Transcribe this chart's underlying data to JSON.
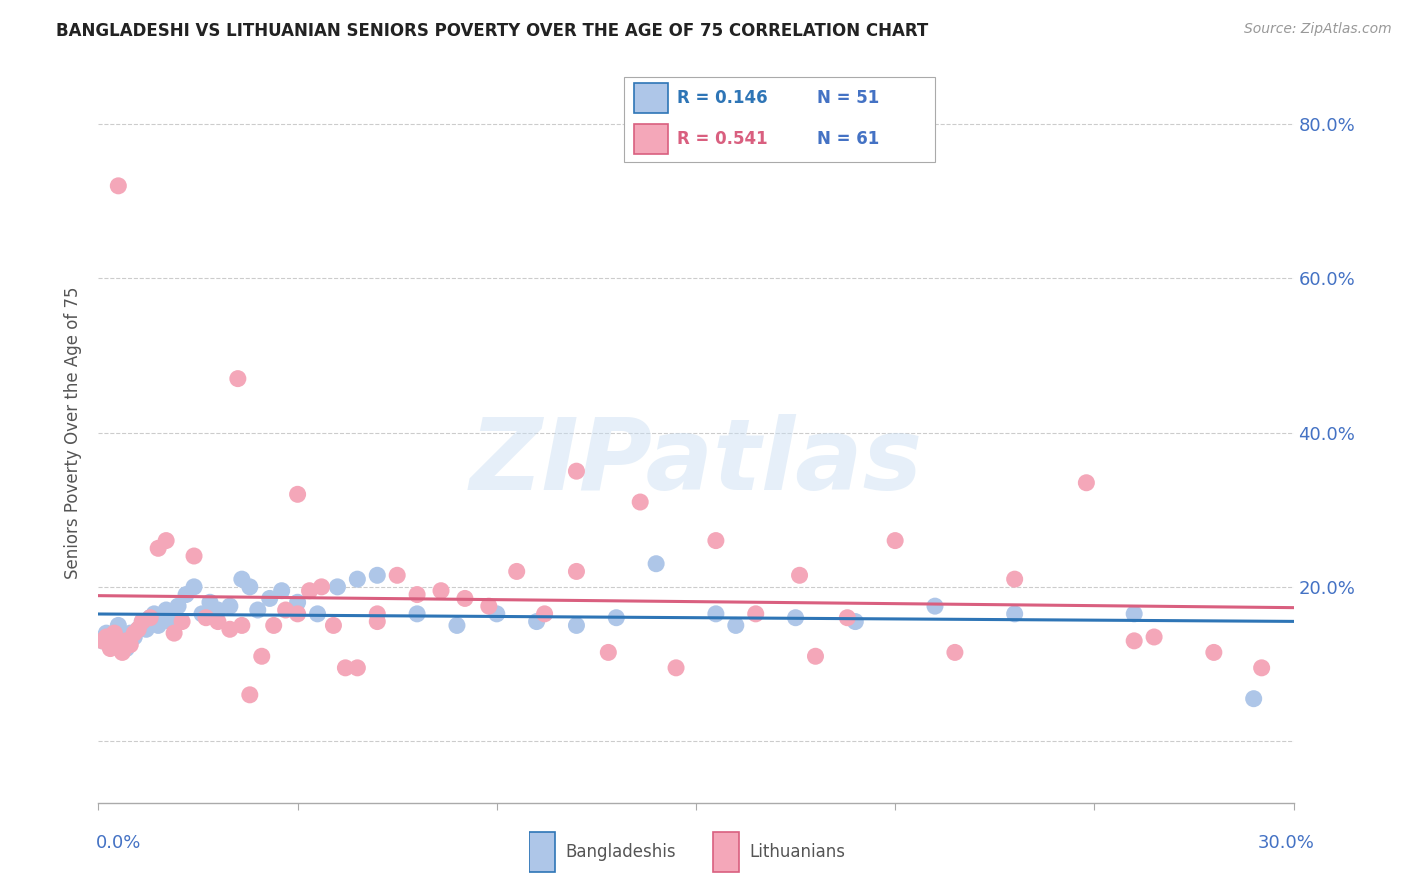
{
  "title": "BANGLADESHI VS LITHUANIAN SENIORS POVERTY OVER THE AGE OF 75 CORRELATION CHART",
  "source": "Source: ZipAtlas.com",
  "ylabel": "Seniors Poverty Over the Age of 75",
  "xtick_left": "0.0%",
  "xtick_right": "30.0%",
  "xlim": [
    0.0,
    0.3
  ],
  "ylim": [
    -0.08,
    0.88
  ],
  "yticks": [
    0.0,
    0.2,
    0.4,
    0.6,
    0.8
  ],
  "ytick_labels": [
    "",
    "20.0%",
    "40.0%",
    "60.0%",
    "80.0%"
  ],
  "title_color": "#222222",
  "source_color": "#999999",
  "axis_tick_color": "#4472c4",
  "grid_color": "#cccccc",
  "background_color": "#ffffff",
  "bangladeshi_color": "#aec6e8",
  "lithuanian_color": "#f4a7b9",
  "bangladeshi_line_color": "#2e75b6",
  "lithuanian_line_color": "#d95f7f",
  "legend_label_bangladeshi": "R = 0.146   N = 51",
  "legend_label_lithuanian": "R = 0.541   N = 61",
  "legend_R_bangladeshi": "R = 0.146",
  "legend_N_bangladeshi": "N = 51",
  "legend_R_lithuanian": "R = 0.541",
  "legend_N_lithuanian": "N = 61",
  "watermark": "ZIPatlas",
  "bangladeshi_x": [
    0.001,
    0.002,
    0.003,
    0.004,
    0.005,
    0.005,
    0.006,
    0.007,
    0.008,
    0.009,
    0.01,
    0.011,
    0.012,
    0.013,
    0.014,
    0.015,
    0.016,
    0.017,
    0.018,
    0.02,
    0.022,
    0.024,
    0.026,
    0.028,
    0.03,
    0.033,
    0.036,
    0.038,
    0.04,
    0.043,
    0.046,
    0.05,
    0.055,
    0.06,
    0.065,
    0.07,
    0.08,
    0.09,
    0.1,
    0.11,
    0.12,
    0.13,
    0.14,
    0.155,
    0.16,
    0.175,
    0.19,
    0.21,
    0.23,
    0.26,
    0.29
  ],
  "bangladeshi_y": [
    0.13,
    0.14,
    0.125,
    0.135,
    0.14,
    0.15,
    0.13,
    0.12,
    0.14,
    0.135,
    0.145,
    0.155,
    0.145,
    0.16,
    0.165,
    0.15,
    0.16,
    0.17,
    0.155,
    0.175,
    0.19,
    0.2,
    0.165,
    0.18,
    0.17,
    0.175,
    0.21,
    0.2,
    0.17,
    0.185,
    0.195,
    0.18,
    0.165,
    0.2,
    0.21,
    0.215,
    0.165,
    0.15,
    0.165,
    0.155,
    0.15,
    0.16,
    0.23,
    0.165,
    0.15,
    0.16,
    0.155,
    0.175,
    0.165,
    0.165,
    0.055
  ],
  "lithuanian_x": [
    0.001,
    0.002,
    0.003,
    0.004,
    0.005,
    0.006,
    0.007,
    0.008,
    0.009,
    0.01,
    0.011,
    0.013,
    0.015,
    0.017,
    0.019,
    0.021,
    0.024,
    0.027,
    0.03,
    0.033,
    0.036,
    0.038,
    0.041,
    0.044,
    0.047,
    0.05,
    0.053,
    0.056,
    0.059,
    0.062,
    0.065,
    0.07,
    0.075,
    0.08,
    0.086,
    0.092,
    0.098,
    0.105,
    0.112,
    0.12,
    0.128,
    0.136,
    0.145,
    0.155,
    0.165,
    0.176,
    0.188,
    0.2,
    0.215,
    0.23,
    0.248,
    0.265,
    0.28,
    0.292,
    0.05,
    0.07,
    0.12,
    0.18,
    0.005,
    0.035,
    0.26
  ],
  "lithuanian_y": [
    0.13,
    0.135,
    0.12,
    0.14,
    0.125,
    0.115,
    0.13,
    0.125,
    0.14,
    0.145,
    0.155,
    0.16,
    0.25,
    0.26,
    0.14,
    0.155,
    0.24,
    0.16,
    0.155,
    0.145,
    0.15,
    0.06,
    0.11,
    0.15,
    0.17,
    0.165,
    0.195,
    0.2,
    0.15,
    0.095,
    0.095,
    0.165,
    0.215,
    0.19,
    0.195,
    0.185,
    0.175,
    0.22,
    0.165,
    0.22,
    0.115,
    0.31,
    0.095,
    0.26,
    0.165,
    0.215,
    0.16,
    0.26,
    0.115,
    0.21,
    0.335,
    0.135,
    0.115,
    0.095,
    0.32,
    0.155,
    0.35,
    0.11,
    0.72,
    0.47,
    0.13
  ]
}
